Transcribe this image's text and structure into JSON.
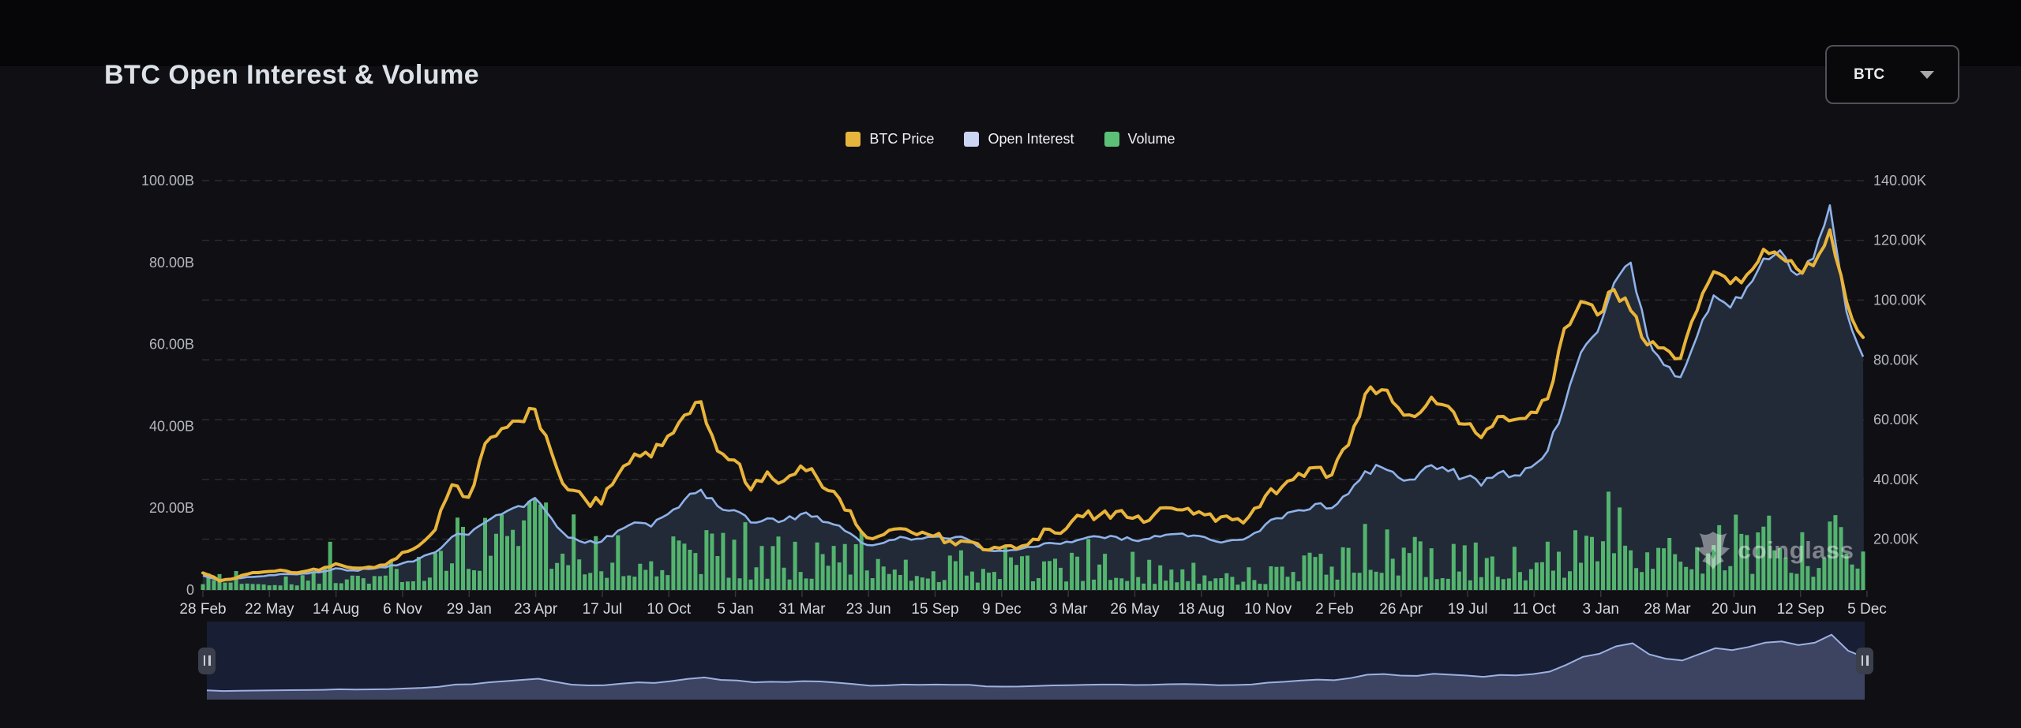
{
  "page": {
    "title": "BTC Open Interest & Volume"
  },
  "controls": {
    "symbol_select": {
      "value": "BTC",
      "chevron_icon": "chevron-down"
    }
  },
  "legend": [
    {
      "label": "BTC Price",
      "color": "#e7b43c"
    },
    {
      "label": "Open Interest",
      "color": "#c9d5f3"
    },
    {
      "label": "Volume",
      "color": "#5dc077"
    }
  ],
  "watermark": {
    "text": "coinglass"
  },
  "chart_data": {
    "type": "mixed",
    "title": "BTC Open Interest & Volume",
    "x_tick_labels": [
      "28 Feb",
      "22 May",
      "14 Aug",
      "6 Nov",
      "29 Jan",
      "23 Apr",
      "17 Jul",
      "10 Oct",
      "5 Jan",
      "31 Mar",
      "23 Jun",
      "15 Sep",
      "9 Dec",
      "3 Mar",
      "26 May",
      "18 Aug",
      "10 Nov",
      "2 Feb",
      "26 Apr",
      "19 Jul",
      "11 Oct",
      "3 Jan",
      "28 Mar",
      "20 Jun",
      "12 Sep",
      "5 Dec"
    ],
    "x_range_note": "weekly-interpolated samples, 101 points spanning 28 Feb 2020 - 5 Dec 2025",
    "left_axis": {
      "unit": "B",
      "min": 0,
      "max": 101,
      "ticks": [
        {
          "label": "100.00B",
          "value": 100
        },
        {
          "label": "80.00B",
          "value": 80
        },
        {
          "label": "60.00B",
          "value": 60
        },
        {
          "label": "40.00B",
          "value": 40
        },
        {
          "label": "20.00B",
          "value": 20
        },
        {
          "label": "0",
          "value": 0
        }
      ]
    },
    "right_axis": {
      "unit": "K",
      "min": 3,
      "max": 141.3,
      "ticks": [
        {
          "label": "140.00K",
          "value": 140
        },
        {
          "label": "120.00K",
          "value": 120
        },
        {
          "label": "100.00K",
          "value": 100
        },
        {
          "label": "80.00K",
          "value": 80
        },
        {
          "label": "60.00K",
          "value": 60
        },
        {
          "label": "40.00K",
          "value": 40
        },
        {
          "label": "20.00K",
          "value": 20
        }
      ]
    },
    "grid": {
      "show": true,
      "dashed": true,
      "color": "#2d2e33",
      "follow": "right_axis"
    },
    "legend_position": "top-center",
    "series": [
      {
        "name": "BTC Price",
        "role": "price",
        "type": "line",
        "axis": "right",
        "color": "#e9b43a",
        "values": [
          8.7,
          6.0,
          7.0,
          8.8,
          9.2,
          9.4,
          9.1,
          9.6,
          11.8,
          10.4,
          10.7,
          11.4,
          15.5,
          17.8,
          23.2,
          38.2,
          34.0,
          52.0,
          57.0,
          59.5,
          63.5,
          49.0,
          36.5,
          33.5,
          31.8,
          41.5,
          48.5,
          47.5,
          54.5,
          61.5,
          66.0,
          49.5,
          46.5,
          36.5,
          42.5,
          39.5,
          44.5,
          40.5,
          36.0,
          29.5,
          20.5,
          21.5,
          23.5,
          21.5,
          21.0,
          19.5,
          19.2,
          16.5,
          17.0,
          16.8,
          20.0,
          23.3,
          23.5,
          27.5,
          28.0,
          29.2,
          27.0,
          26.3,
          30.5,
          29.8,
          29.2,
          26.0,
          26.5,
          27.5,
          34.5,
          37.5,
          42.0,
          44.0,
          41.5,
          51.5,
          68.5,
          70.0,
          64.0,
          61.0,
          67.5,
          64.5,
          58.5,
          54.0,
          61.0,
          60.0,
          62.5,
          67.0,
          90.5,
          99.5,
          95.0,
          103.5,
          96.5,
          85.0,
          84.0,
          80.5,
          96.5,
          109.5,
          105.5,
          108.5,
          117.0,
          114.5,
          110.5,
          111.5,
          123.5,
          99.5,
          87.5
        ]
      },
      {
        "name": "Open Interest",
        "role": "open_interest",
        "type": "line",
        "axis": "left",
        "color": "#8fb2e9",
        "area_color": "#222a38",
        "values": [
          3.5,
          2.4,
          2.8,
          3.2,
          3.6,
          3.9,
          4.0,
          4.3,
          5.3,
          4.8,
          5.1,
          5.5,
          6.5,
          7.6,
          9.2,
          13.0,
          13.5,
          16.5,
          18.5,
          20.5,
          22.5,
          17.5,
          12.8,
          11.5,
          11.8,
          14.5,
          16.5,
          15.5,
          18.5,
          22.0,
          24.5,
          20.5,
          19.5,
          16.5,
          17.5,
          17.0,
          18.5,
          18.0,
          16.0,
          13.8,
          11.0,
          11.5,
          13.0,
          12.5,
          13.0,
          12.5,
          12.5,
          10.0,
          9.6,
          9.8,
          10.5,
          11.5,
          11.8,
          12.5,
          13.0,
          13.0,
          12.2,
          12.5,
          13.5,
          13.8,
          13.2,
          11.9,
          12.2,
          13.0,
          16.0,
          17.5,
          19.5,
          21.0,
          20.0,
          23.5,
          29.0,
          30.0,
          27.5,
          27.0,
          30.5,
          29.0,
          27.5,
          25.5,
          28.5,
          28.0,
          30.0,
          34.0,
          45.0,
          58.0,
          63.0,
          75.0,
          80.0,
          62.0,
          55.0,
          52.0,
          62.0,
          72.0,
          69.0,
          74.0,
          81.0,
          83.0,
          77.0,
          81.0,
          94.0,
          68.0,
          57.0
        ]
      },
      {
        "name": "Volume",
        "role": "volume",
        "type": "bar",
        "axis": "left",
        "color": "#58c073",
        "values": [
          3,
          6.5,
          4,
          3.5,
          3.2,
          3.5,
          3,
          3.5,
          5,
          4.2,
          3.8,
          4,
          6,
          6.5,
          7.5,
          13,
          11,
          14,
          13,
          12.5,
          14,
          16,
          13,
          9,
          8.5,
          10,
          10,
          9,
          10.5,
          12,
          11,
          9,
          8.5,
          8,
          8.5,
          8,
          8,
          7.5,
          8,
          9,
          10,
          7,
          6.5,
          6.5,
          6,
          5.5,
          6,
          5.5,
          7,
          5.5,
          5,
          5.5,
          6,
          5,
          6.5,
          5.5,
          5,
          4.5,
          4.5,
          5,
          4.5,
          4,
          4,
          3.5,
          4.5,
          6,
          6,
          6.5,
          8,
          7,
          10,
          13,
          10,
          9,
          8,
          8.5,
          7.5,
          7,
          8,
          7.5,
          7,
          7.5,
          9,
          14,
          16,
          14,
          15,
          13,
          11,
          10,
          11,
          13,
          14,
          12,
          11,
          13,
          12,
          10,
          11,
          17,
          16
        ]
      }
    ],
    "navigator": {
      "source": "open_interest",
      "bg_color": "#181e34",
      "area_color": "#3c4462",
      "line_color": "#9db0e0",
      "handle_icon": "drag-handle"
    },
    "render": {
      "noise_seed": 7,
      "price_jitter": 2.0,
      "oi_jitter": 1.2,
      "bar_noise_min": 0.32,
      "bar_noise_span": 1.35,
      "spike_chance": 0.03,
      "spike_mult": 2.0,
      "bar_max": 44
    }
  }
}
